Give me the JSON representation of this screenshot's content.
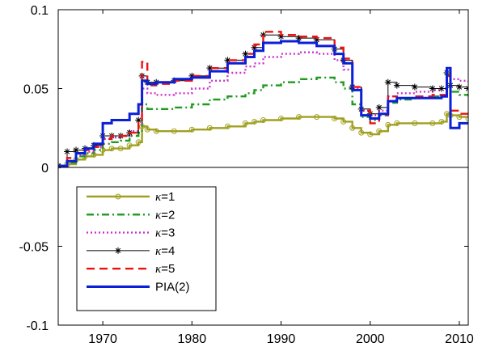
{
  "chart_data": {
    "type": "line",
    "title": "",
    "xlabel": "",
    "ylabel": "",
    "xlim": [
      1965,
      2011
    ],
    "ylim": [
      -0.1,
      0.1
    ],
    "xticks": [
      1970,
      1980,
      1990,
      2000,
      2010
    ],
    "xtick_labels": [
      "1970",
      "1980",
      "1990",
      "2000",
      "2010"
    ],
    "yticks": [
      -0.1,
      -0.05,
      0,
      0.05,
      0.1
    ],
    "ytick_labels": [
      "-0.1",
      "-0.05",
      "0",
      "0.05",
      "0.1"
    ],
    "grid": false,
    "legend_position": "bottom-left",
    "series": [
      {
        "name": "κ=1",
        "label_prefix": "κ",
        "label_suffix": "=1",
        "color": "#a0a020",
        "style": "solid",
        "marker": "circle",
        "x": [
          1965.0,
          1966.0,
          1967.0,
          1968.0,
          1969.0,
          1970.0,
          1971.0,
          1972.0,
          1973.0,
          1974.0,
          1974.4,
          1975.0,
          1976.0,
          1978.0,
          1980.0,
          1982.0,
          1984.0,
          1986.0,
          1987.0,
          1988.0,
          1990.0,
          1992.0,
          1994.0,
          1996.0,
          1997.0,
          1998.0,
          1999.0,
          2000.0,
          2001.0,
          2002.0,
          2003.0,
          2005.0,
          2007.0,
          2008.0,
          2008.6,
          2009.0,
          2010.0,
          2011.0
        ],
        "y": [
          0.001,
          0.002,
          0.005,
          0.007,
          0.008,
          0.011,
          0.012,
          0.012,
          0.014,
          0.016,
          0.026,
          0.024,
          0.023,
          0.023,
          0.024,
          0.025,
          0.026,
          0.028,
          0.029,
          0.03,
          0.031,
          0.032,
          0.032,
          0.031,
          0.029,
          0.025,
          0.022,
          0.021,
          0.023,
          0.027,
          0.028,
          0.028,
          0.028,
          0.029,
          0.034,
          0.033,
          0.032,
          0.031
        ]
      },
      {
        "name": "κ=2",
        "label_prefix": "κ",
        "label_suffix": "=2",
        "color": "#1f9a1f",
        "style": "dashdot",
        "marker": "none",
        "x": [
          1965.0,
          1966.0,
          1967.0,
          1968.0,
          1969.0,
          1970.0,
          1971.0,
          1972.0,
          1973.0,
          1974.0,
          1974.4,
          1975.0,
          1976.0,
          1978.0,
          1980.0,
          1982.0,
          1984.0,
          1986.0,
          1987.0,
          1988.0,
          1990.0,
          1992.0,
          1994.0,
          1996.0,
          1997.0,
          1998.0,
          1999.0,
          2000.0,
          2001.0,
          2002.0,
          2003.0,
          2005.0,
          2007.0,
          2008.0,
          2008.6,
          2009.0,
          2010.0,
          2011.0
        ],
        "y": [
          0.001,
          0.003,
          0.007,
          0.009,
          0.011,
          0.015,
          0.016,
          0.017,
          0.02,
          0.022,
          0.04,
          0.037,
          0.037,
          0.038,
          0.04,
          0.043,
          0.045,
          0.047,
          0.049,
          0.052,
          0.054,
          0.056,
          0.057,
          0.054,
          0.05,
          0.04,
          0.032,
          0.03,
          0.033,
          0.041,
          0.043,
          0.044,
          0.045,
          0.045,
          0.05,
          0.048,
          0.046,
          0.045
        ]
      },
      {
        "name": "κ=3",
        "label_prefix": "κ",
        "label_suffix": "=3",
        "color": "#cc33cc",
        "style": "dotted",
        "marker": "none",
        "x": [
          1965.0,
          1966.0,
          1967.0,
          1968.0,
          1969.0,
          1970.0,
          1971.0,
          1972.0,
          1973.0,
          1974.0,
          1974.4,
          1975.0,
          1976.0,
          1978.0,
          1980.0,
          1982.0,
          1984.0,
          1986.0,
          1987.0,
          1988.0,
          1990.0,
          1992.0,
          1994.0,
          1996.0,
          1997.0,
          1998.0,
          1999.0,
          2000.0,
          2001.0,
          2002.0,
          2003.0,
          2005.0,
          2007.0,
          2008.0,
          2008.6,
          2009.0,
          2010.0,
          2011.0
        ],
        "y": [
          0.001,
          0.004,
          0.008,
          0.01,
          0.013,
          0.018,
          0.019,
          0.02,
          0.023,
          0.028,
          0.05,
          0.047,
          0.046,
          0.047,
          0.05,
          0.055,
          0.06,
          0.064,
          0.066,
          0.07,
          0.072,
          0.073,
          0.072,
          0.068,
          0.062,
          0.05,
          0.036,
          0.033,
          0.036,
          0.045,
          0.047,
          0.048,
          0.049,
          0.05,
          0.058,
          0.056,
          0.055,
          0.054
        ]
      },
      {
        "name": "κ=4",
        "label_prefix": "κ",
        "label_suffix": "=4",
        "color": "#000000",
        "style": "solid",
        "marker": "star",
        "x": [
          1965.0,
          1966.0,
          1967.0,
          1968.0,
          1969.0,
          1970.0,
          1971.0,
          1972.0,
          1973.0,
          1974.0,
          1974.4,
          1975.0,
          1976.0,
          1978.0,
          1980.0,
          1982.0,
          1984.0,
          1986.0,
          1987.0,
          1988.0,
          1990.0,
          1992.0,
          1994.0,
          1996.0,
          1997.0,
          1998.0,
          1999.0,
          2000.0,
          2001.0,
          2002.0,
          2003.0,
          2005.0,
          2007.0,
          2008.0,
          2008.6,
          2009.0,
          2010.0,
          2011.0
        ],
        "y": [
          0.001,
          0.01,
          0.011,
          0.012,
          0.014,
          0.02,
          0.02,
          0.02,
          0.022,
          0.03,
          0.058,
          0.054,
          0.054,
          0.055,
          0.058,
          0.063,
          0.068,
          0.072,
          0.076,
          0.084,
          0.083,
          0.082,
          0.081,
          0.075,
          0.068,
          0.051,
          0.037,
          0.034,
          0.038,
          0.054,
          0.052,
          0.051,
          0.05,
          0.05,
          0.06,
          0.052,
          0.051,
          0.05
        ]
      },
      {
        "name": "κ=5",
        "label_prefix": "κ",
        "label_suffix": "=5",
        "color": "#ee1111",
        "style": "dashed",
        "marker": "none",
        "x": [
          1965.0,
          1966.0,
          1967.0,
          1968.0,
          1969.0,
          1970.0,
          1971.0,
          1972.0,
          1973.0,
          1974.0,
          1974.4,
          1975.0,
          1976.0,
          1978.0,
          1980.0,
          1982.0,
          1984.0,
          1986.0,
          1987.0,
          1988.0,
          1990.0,
          1992.0,
          1994.0,
          1996.0,
          1997.0,
          1998.0,
          1999.0,
          2000.0,
          2001.0,
          2002.0,
          2003.0,
          2005.0,
          2007.0,
          2008.0,
          2008.6,
          2009.0,
          2010.0,
          2011.0
        ],
        "y": [
          0.001,
          0.006,
          0.009,
          0.011,
          0.013,
          0.018,
          0.02,
          0.02,
          0.022,
          0.03,
          0.067,
          0.052,
          0.053,
          0.055,
          0.058,
          0.063,
          0.068,
          0.072,
          0.078,
          0.086,
          0.084,
          0.083,
          0.082,
          0.076,
          0.069,
          0.051,
          0.036,
          0.028,
          0.033,
          0.045,
          0.044,
          0.045,
          0.046,
          0.046,
          0.058,
          0.036,
          0.034,
          0.035
        ]
      },
      {
        "name": "PIA(2)",
        "label_prefix": "",
        "label_suffix": "PIA(2)",
        "color": "#0a1fd6",
        "style": "solid",
        "marker": "none",
        "x": [
          1965.0,
          1966.0,
          1967.0,
          1968.0,
          1969.0,
          1970.0,
          1971.0,
          1972.0,
          1973.0,
          1974.0,
          1974.4,
          1975.0,
          1976.0,
          1978.0,
          1980.0,
          1982.0,
          1984.0,
          1986.0,
          1987.0,
          1988.0,
          1990.0,
          1992.0,
          1994.0,
          1996.0,
          1997.0,
          1998.0,
          1999.0,
          2000.0,
          2001.0,
          2002.0,
          2003.0,
          2005.0,
          2007.0,
          2008.0,
          2008.6,
          2009.0,
          2010.0,
          2011.0
        ],
        "y": [
          0.001,
          0.004,
          0.009,
          0.012,
          0.015,
          0.028,
          0.03,
          0.03,
          0.034,
          0.04,
          0.055,
          0.053,
          0.054,
          0.056,
          0.057,
          0.061,
          0.066,
          0.07,
          0.074,
          0.079,
          0.08,
          0.079,
          0.077,
          0.072,
          0.066,
          0.049,
          0.033,
          0.031,
          0.034,
          0.042,
          0.044,
          0.044,
          0.044,
          0.045,
          0.063,
          0.025,
          0.028,
          0.028
        ]
      }
    ]
  }
}
